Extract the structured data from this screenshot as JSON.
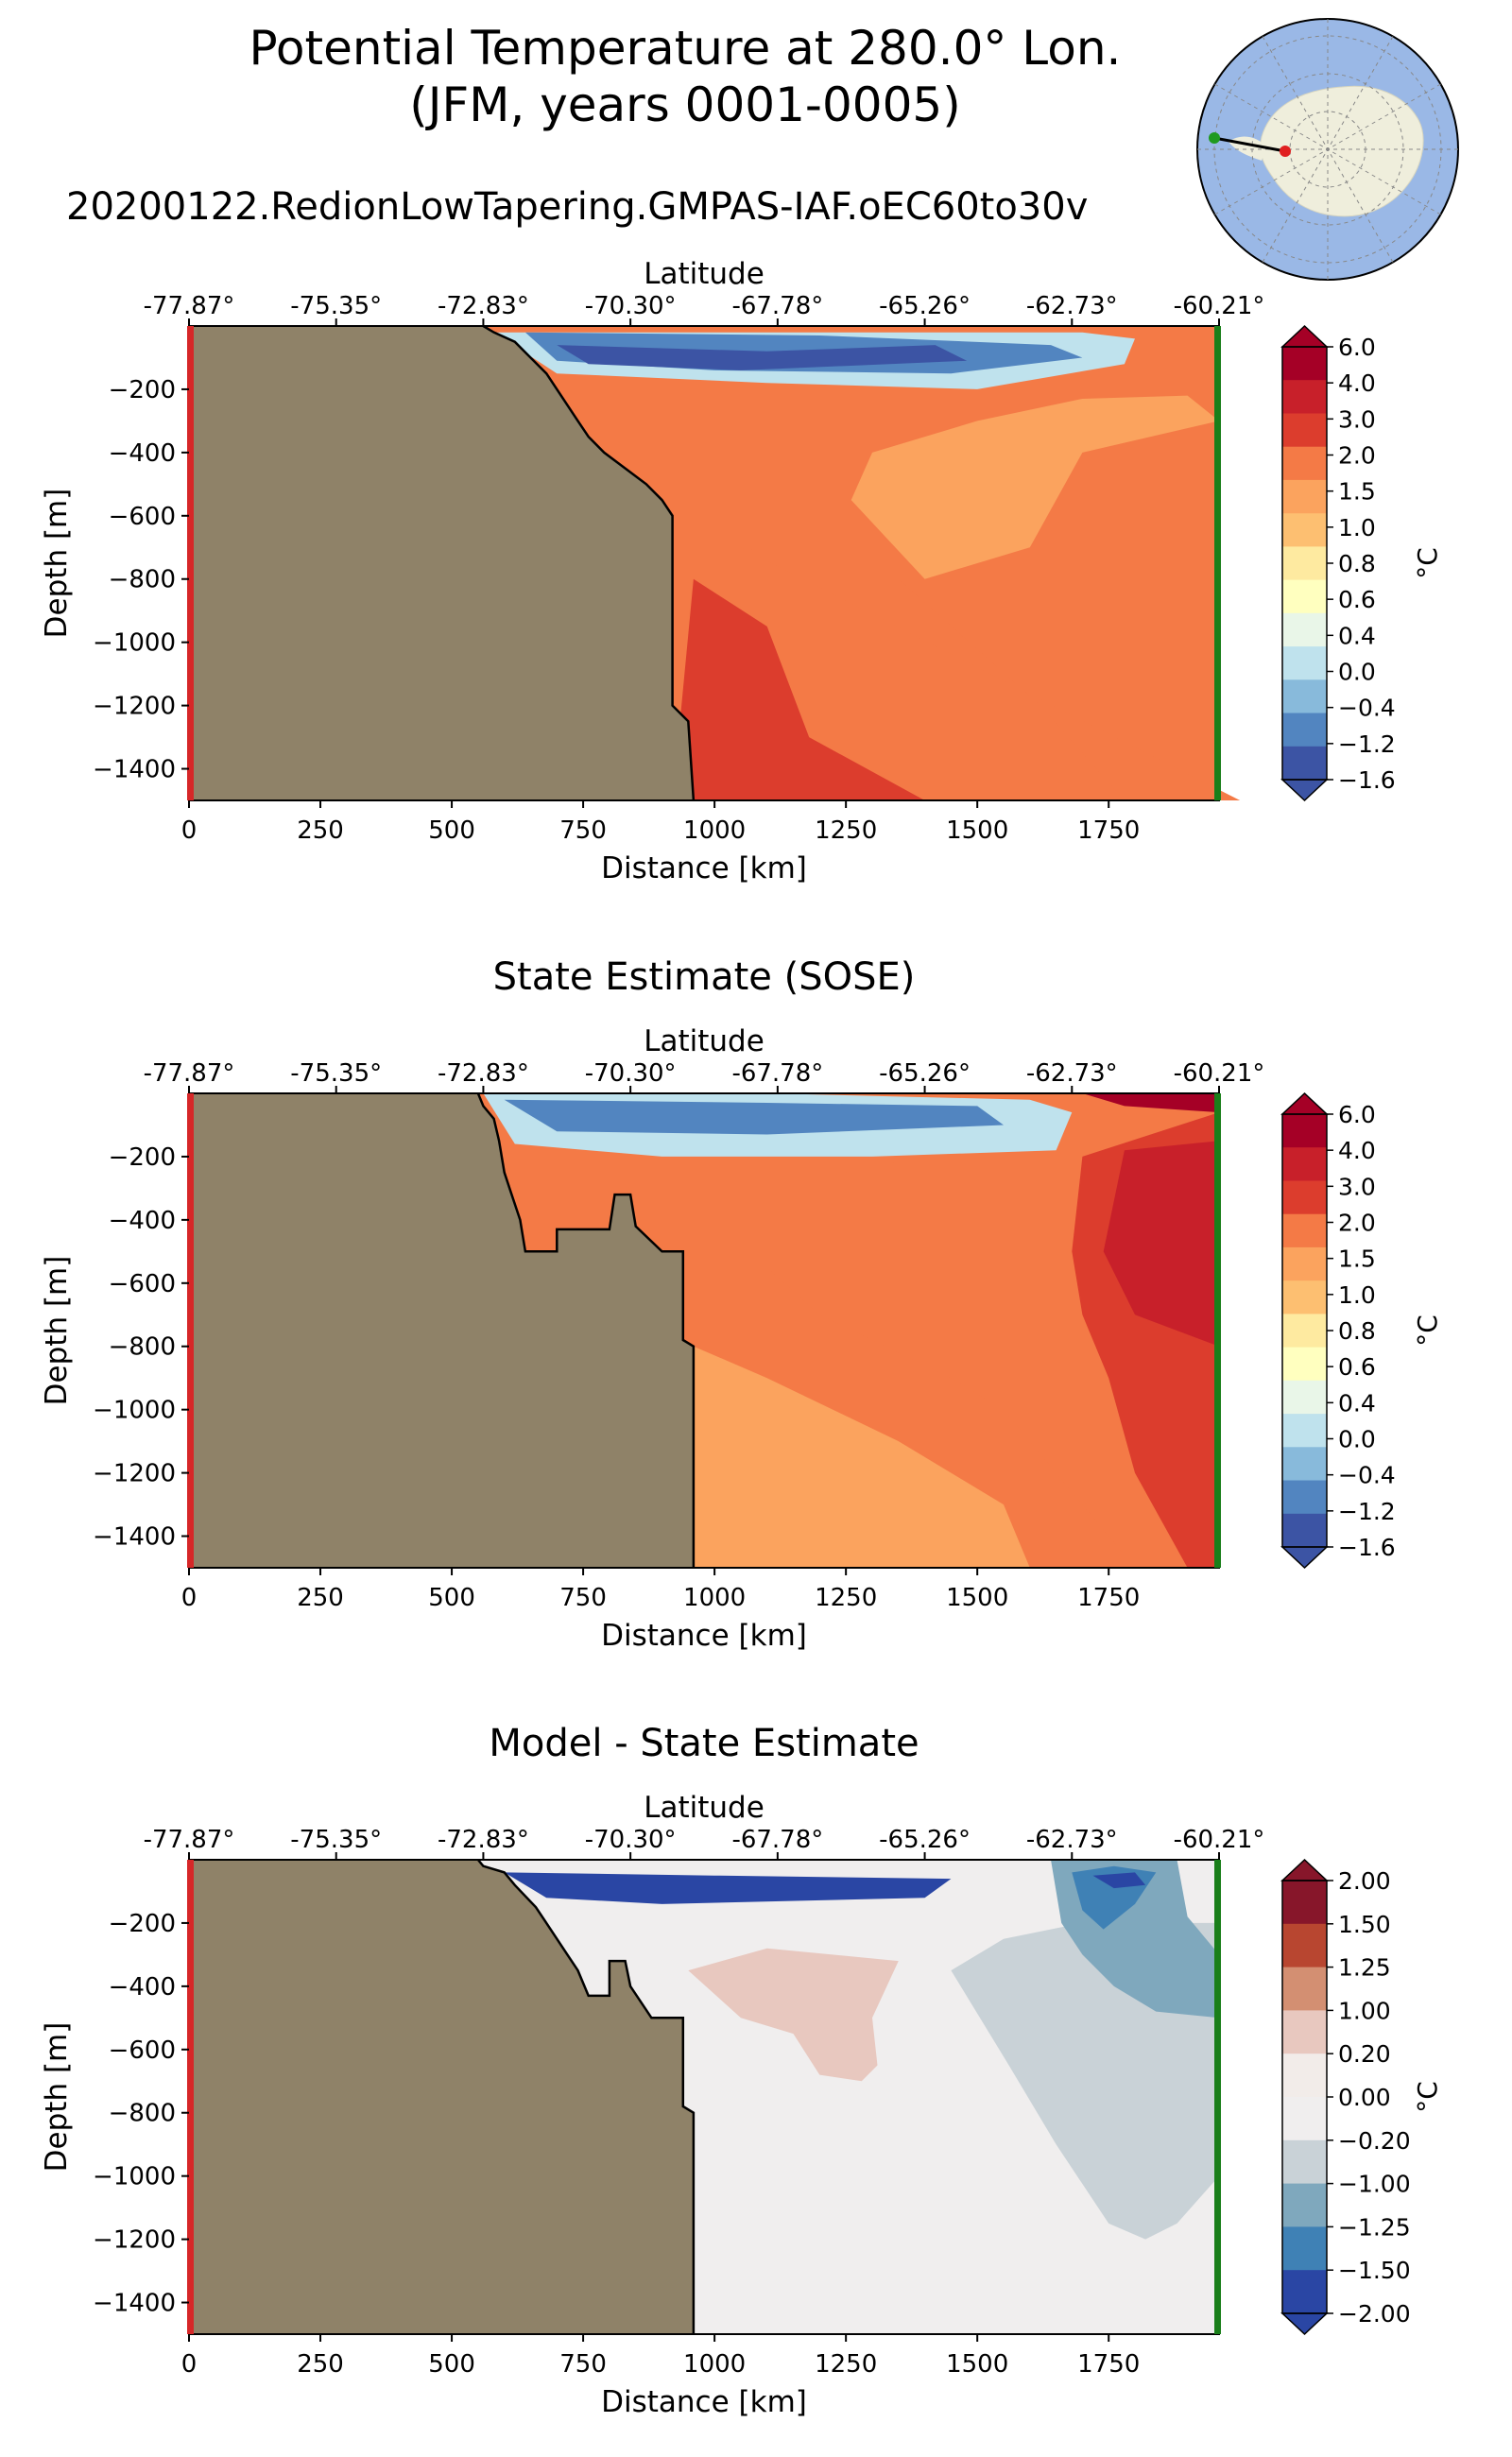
{
  "figure": {
    "title_line1": "Potential Temperature at 280.0° Lon.",
    "title_line2": "(JFM, years 0001-0005)",
    "run_name": "20200122.RedionLowTapering.GMPAS-IAF.oEC60to30v"
  },
  "colors": {
    "land": "#8f8268",
    "start_marker": "#d62728",
    "end_marker": "#1a7f1a",
    "map_ocean": "#9ab8e6",
    "map_land": "#efeedc"
  },
  "chart_data": [
    {
      "type": "heatmap",
      "title": "",
      "xlabel": "Distance [km]",
      "ylabel": "Depth [m]",
      "top_axis_label": "Latitude",
      "xlim": [
        0,
        1960
      ],
      "ylim": [
        -1500,
        0
      ],
      "x_ticks": [
        "0",
        "250",
        "500",
        "750",
        "1000",
        "1250",
        "1500",
        "1750"
      ],
      "y_ticks": [
        "−200",
        "−400",
        "−600",
        "−800",
        "−1000",
        "−1200",
        "−1400"
      ],
      "lat_ticks": [
        "-77.87°",
        "-75.35°",
        "-72.83°",
        "-70.30°",
        "-67.78°",
        "-65.26°",
        "-62.73°",
        "-60.21°"
      ],
      "colorbar_label": "°C",
      "colorbar_ticks": [
        "6.0",
        "4.0",
        "3.0",
        "2.0",
        "1.5",
        "1.0",
        "0.8",
        "0.6",
        "0.4",
        "0.0",
        "−0.4",
        "−1.2",
        "−1.6"
      ],
      "colorbar_colors": [
        "#a50026",
        "#c8202a",
        "#dc3d2d",
        "#f47a46",
        "#fba35e",
        "#fdbf71",
        "#feeaa0",
        "#ffffbf",
        "#e9f6e8",
        "#bfe2ed",
        "#88badb",
        "#5285c0",
        "#3c54a4"
      ],
      "bathymetry_profile": [
        [
          560,
          0
        ],
        [
          580,
          -20
        ],
        [
          620,
          -50
        ],
        [
          650,
          -100
        ],
        [
          680,
          -150
        ],
        [
          700,
          -200
        ],
        [
          720,
          -250
        ],
        [
          740,
          -300
        ],
        [
          760,
          -350
        ],
        [
          790,
          -400
        ],
        [
          830,
          -450
        ],
        [
          870,
          -500
        ],
        [
          900,
          -550
        ],
        [
          920,
          -600
        ],
        [
          920,
          -1200
        ],
        [
          950,
          -1250
        ],
        [
          960,
          -1500
        ]
      ],
      "fields": [
        {
          "level_index": 2,
          "points": [
            [
              920,
              -1500
            ],
            [
              960,
              -800
            ],
            [
              1100,
              -950
            ],
            [
              1180,
              -1300
            ],
            [
              1400,
              -1500
            ]
          ]
        },
        {
          "level_index": 3,
          "points": [
            [
              1050,
              -700
            ],
            [
              1350,
              -800
            ],
            [
              1620,
              -1200
            ],
            [
              1780,
              -1500
            ],
            [
              2000,
              -1500
            ]
          ]
        },
        {
          "level_index": 4,
          "points": [
            [
              1300,
              -400
            ],
            [
              1500,
              -300
            ],
            [
              1700,
              -230
            ],
            [
              1900,
              -220
            ],
            [
              1960,
              -300
            ],
            [
              1700,
              -400
            ],
            [
              1600,
              -700
            ],
            [
              1400,
              -800
            ],
            [
              1260,
              -550
            ]
          ]
        },
        {
          "level_index": 9,
          "points": [
            [
              580,
              -20
            ],
            [
              1000,
              -20
            ],
            [
              1700,
              -20
            ],
            [
              1800,
              -40
            ],
            [
              1780,
              -120
            ],
            [
              1500,
              -200
            ],
            [
              1100,
              -180
            ],
            [
              700,
              -150
            ]
          ]
        },
        {
          "level_index": 11,
          "points": [
            [
              640,
              -20
            ],
            [
              1200,
              -30
            ],
            [
              1640,
              -60
            ],
            [
              1700,
              -100
            ],
            [
              1450,
              -150
            ],
            [
              1000,
              -140
            ],
            [
              700,
              -110
            ]
          ]
        },
        {
          "level_index": 12,
          "points": [
            [
              700,
              -60
            ],
            [
              1100,
              -80
            ],
            [
              1420,
              -60
            ],
            [
              1480,
              -110
            ],
            [
              1050,
              -140
            ],
            [
              760,
              -120
            ]
          ]
        }
      ]
    },
    {
      "type": "heatmap",
      "title": "State Estimate (SOSE)",
      "xlabel": "Distance [km]",
      "ylabel": "Depth [m]",
      "top_axis_label": "Latitude",
      "xlim": [
        0,
        1960
      ],
      "ylim": [
        -1500,
        0
      ],
      "x_ticks": [
        "0",
        "250",
        "500",
        "750",
        "1000",
        "1250",
        "1500",
        "1750"
      ],
      "y_ticks": [
        "−200",
        "−400",
        "−600",
        "−800",
        "−1000",
        "−1200",
        "−1400"
      ],
      "lat_ticks": [
        "-77.87°",
        "-75.35°",
        "-72.83°",
        "-70.30°",
        "-67.78°",
        "-65.26°",
        "-62.73°",
        "-60.21°"
      ],
      "colorbar_label": "°C",
      "colorbar_ticks": [
        "6.0",
        "4.0",
        "3.0",
        "2.0",
        "1.5",
        "1.0",
        "0.8",
        "0.6",
        "0.4",
        "0.0",
        "−0.4",
        "−1.2",
        "−1.6"
      ],
      "colorbar_colors": [
        "#a50026",
        "#c8202a",
        "#dc3d2d",
        "#f47a46",
        "#fba35e",
        "#fdbf71",
        "#feeaa0",
        "#ffffbf",
        "#e9f6e8",
        "#bfe2ed",
        "#88badb",
        "#5285c0",
        "#3c54a4"
      ],
      "bathymetry_profile": [
        [
          550,
          0
        ],
        [
          560,
          -40
        ],
        [
          580,
          -80
        ],
        [
          590,
          -150
        ],
        [
          600,
          -250
        ],
        [
          610,
          -300
        ],
        [
          630,
          -400
        ],
        [
          640,
          -500
        ],
        [
          700,
          -500
        ],
        [
          700,
          -430
        ],
        [
          800,
          -430
        ],
        [
          810,
          -320
        ],
        [
          840,
          -320
        ],
        [
          850,
          -420
        ],
        [
          900,
          -500
        ],
        [
          940,
          -500
        ],
        [
          940,
          -780
        ],
        [
          960,
          -800
        ],
        [
          960,
          -1500
        ]
      ],
      "fields": [
        {
          "level_index": 4,
          "points": [
            [
              940,
              -1500
            ],
            [
              960,
              -800
            ],
            [
              1100,
              -900
            ],
            [
              1350,
              -1100
            ],
            [
              1550,
              -1300
            ],
            [
              1600,
              -1500
            ]
          ]
        },
        {
          "level_index": 3,
          "points": [
            [
              1100,
              -300
            ],
            [
              1400,
              -200
            ],
            [
              1660,
              -150
            ],
            [
              1800,
              -150
            ],
            [
              1960,
              -100
            ],
            [
              1960,
              -1500
            ],
            [
              1800,
              -1500
            ],
            [
              1700,
              -1300
            ],
            [
              1550,
              -1000
            ],
            [
              1450,
              -900
            ],
            [
              1200,
              -700
            ],
            [
              1100,
              -550
            ]
          ]
        },
        {
          "level_index": 2,
          "points": [
            [
              1700,
              -200
            ],
            [
              1960,
              -60
            ],
            [
              1960,
              -1500
            ],
            [
              1900,
              -1500
            ],
            [
              1800,
              -1200
            ],
            [
              1750,
              -900
            ],
            [
              1700,
              -700
            ],
            [
              1680,
              -500
            ]
          ]
        },
        {
          "level_index": 1,
          "points": [
            [
              1780,
              -180
            ],
            [
              1960,
              -150
            ],
            [
              1960,
              -800
            ],
            [
              1800,
              -700
            ],
            [
              1740,
              -500
            ]
          ]
        },
        {
          "level_index": 0,
          "points": [
            [
              1700,
              0
            ],
            [
              1960,
              0
            ],
            [
              1960,
              -60
            ],
            [
              1780,
              -40
            ]
          ]
        },
        {
          "level_index": 9,
          "points": [
            [
              560,
              0
            ],
            [
              1100,
              0
            ],
            [
              1600,
              -20
            ],
            [
              1680,
              -60
            ],
            [
              1650,
              -180
            ],
            [
              1300,
              -200
            ],
            [
              900,
              -200
            ],
            [
              620,
              -160
            ]
          ]
        },
        {
          "level_index": 11,
          "points": [
            [
              600,
              -20
            ],
            [
              1100,
              -30
            ],
            [
              1500,
              -40
            ],
            [
              1550,
              -100
            ],
            [
              1100,
              -130
            ],
            [
              700,
              -120
            ]
          ]
        }
      ]
    },
    {
      "type": "heatmap",
      "title": "Model - State Estimate",
      "xlabel": "Distance [km]",
      "ylabel": "Depth [m]",
      "top_axis_label": "Latitude",
      "xlim": [
        0,
        1960
      ],
      "ylim": [
        -1500,
        0
      ],
      "x_ticks": [
        "0",
        "250",
        "500",
        "750",
        "1000",
        "1250",
        "1500",
        "1750"
      ],
      "y_ticks": [
        "−200",
        "−400",
        "−600",
        "−800",
        "−1000",
        "−1200",
        "−1400"
      ],
      "lat_ticks": [
        "-77.87°",
        "-75.35°",
        "-72.83°",
        "-70.30°",
        "-67.78°",
        "-65.26°",
        "-62.73°",
        "-60.21°"
      ],
      "colorbar_label": "°C",
      "colorbar_ticks": [
        "2.00",
        "1.50",
        "1.25",
        "1.00",
        "0.20",
        "0.00",
        "−0.20",
        "−1.00",
        "−1.25",
        "−1.50",
        "−2.00"
      ],
      "colorbar_colors": [
        "#87162a",
        "#b84630",
        "#d38f72",
        "#e8c8bf",
        "#f2ece9",
        "#f0eeee",
        "#c9d2d7",
        "#7fa8bd",
        "#3f81b5",
        "#2a46a4"
      ],
      "bathymetry_profile": [
        [
          550,
          0
        ],
        [
          560,
          -20
        ],
        [
          600,
          -40
        ],
        [
          620,
          -80
        ],
        [
          660,
          -150
        ],
        [
          680,
          -200
        ],
        [
          700,
          -250
        ],
        [
          720,
          -300
        ],
        [
          740,
          -350
        ],
        [
          760,
          -430
        ],
        [
          800,
          -430
        ],
        [
          800,
          -320
        ],
        [
          830,
          -320
        ],
        [
          840,
          -400
        ],
        [
          880,
          -500
        ],
        [
          940,
          -500
        ],
        [
          940,
          -780
        ],
        [
          960,
          -800
        ],
        [
          960,
          -1500
        ]
      ],
      "fields": [
        {
          "level_index": 5,
          "points": [
            [
              560,
              0
            ],
            [
              1960,
              0
            ],
            [
              1960,
              -1500
            ],
            [
              960,
              -1500
            ]
          ]
        },
        {
          "level_index": 6,
          "points": [
            [
              1450,
              -350
            ],
            [
              1550,
              -250
            ],
            [
              1700,
              -200
            ],
            [
              1960,
              -200
            ],
            [
              1960,
              -1000
            ],
            [
              1880,
              -1150
            ],
            [
              1820,
              -1200
            ],
            [
              1750,
              -1150
            ],
            [
              1650,
              -900
            ],
            [
              1560,
              -650
            ]
          ]
        },
        {
          "level_index": 3,
          "points": [
            [
              950,
              -350
            ],
            [
              1100,
              -280
            ],
            [
              1350,
              -320
            ],
            [
              1300,
              -500
            ],
            [
              1310,
              -650
            ],
            [
              1280,
              -700
            ],
            [
              1200,
              -680
            ],
            [
              1150,
              -550
            ],
            [
              1050,
              -500
            ]
          ]
        },
        {
          "level_index": 7,
          "points": [
            [
              1640,
              0
            ],
            [
              1880,
              0
            ],
            [
              1900,
              -180
            ],
            [
              1960,
              -300
            ],
            [
              1960,
              -500
            ],
            [
              1840,
              -480
            ],
            [
              1760,
              -400
            ],
            [
              1700,
              -300
            ],
            [
              1660,
              -200
            ]
          ]
        },
        {
          "level_index": 8,
          "points": [
            [
              1680,
              -40
            ],
            [
              1760,
              -20
            ],
            [
              1840,
              -40
            ],
            [
              1800,
              -140
            ],
            [
              1740,
              -220
            ],
            [
              1700,
              -160
            ]
          ]
        },
        {
          "level_index": 9,
          "points": [
            [
              600,
              -40
            ],
            [
              1000,
              -50
            ],
            [
              1450,
              -60
            ],
            [
              1400,
              -120
            ],
            [
              900,
              -140
            ],
            [
              680,
              -120
            ]
          ]
        },
        {
          "level_index": 9,
          "points": [
            [
              1720,
              -50
            ],
            [
              1800,
              -40
            ],
            [
              1820,
              -80
            ],
            [
              1760,
              -90
            ]
          ]
        }
      ]
    }
  ]
}
